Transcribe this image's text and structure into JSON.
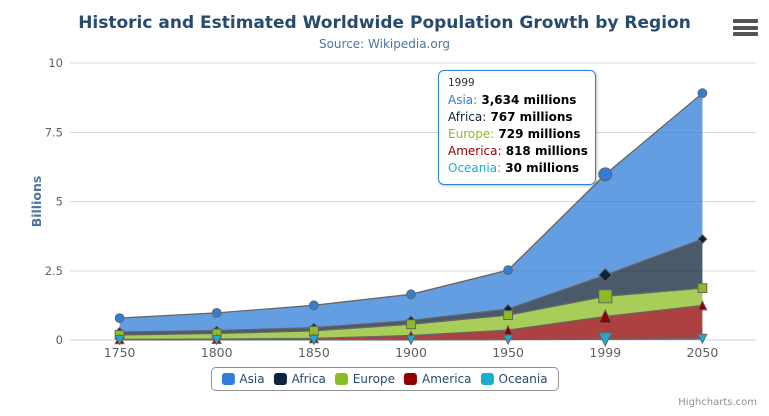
{
  "header": {
    "title": "Historic and Estimated Worldwide Population Growth by Region",
    "subtitle": "Source: Wikipedia.org"
  },
  "icons": {
    "context_menu": "hamburger-menu-icon"
  },
  "chart_data": {
    "type": "area",
    "stacking": "normal",
    "title": "Historic and Estimated Worldwide Population Growth by Region",
    "subtitle": "Source: Wikipedia.org",
    "categories": [
      "1750",
      "1800",
      "1850",
      "1900",
      "1950",
      "1999",
      "2050"
    ],
    "xlabel": "",
    "ylabel": "Billions",
    "ylim": [
      0,
      10
    ],
    "yticks": [
      "0",
      "2.5",
      "5",
      "7.5",
      "10"
    ],
    "unit": "millions",
    "grid": true,
    "legend_position": "bottom",
    "hover_category": "1999",
    "line_color": "#666666",
    "gridline_color": "#d8d8d8",
    "axis_line_color": "#c0d0e0",
    "axis_label_color": "#606060",
    "fill_opacity": 0.75,
    "series": [
      {
        "name": "Asia",
        "color": "#2f7ed8",
        "marker": "circle",
        "values": [
          502,
          635,
          809,
          947,
          1402,
          3634,
          5268
        ]
      },
      {
        "name": "Africa",
        "color": "#0d233a",
        "marker": "diamond",
        "values": [
          106,
          107,
          111,
          133,
          221,
          767,
          1766
        ]
      },
      {
        "name": "Europe",
        "color": "#8bbc21",
        "marker": "square",
        "values": [
          163,
          203,
          276,
          408,
          547,
          729,
          628
        ]
      },
      {
        "name": "America",
        "color": "#910000",
        "marker": "triangle",
        "values": [
          18,
          31,
          54,
          156,
          339,
          818,
          1201
        ]
      },
      {
        "name": "Oceania",
        "color": "#1aadce",
        "marker": "triangle-down",
        "values": [
          2,
          2,
          2,
          6,
          13,
          30,
          46
        ]
      }
    ]
  },
  "tooltip": {
    "header": "1999",
    "border_color": "#2f7ed8",
    "rows": [
      {
        "name": "Asia",
        "value": "3,634 millions",
        "color": "#2f7ed8"
      },
      {
        "name": "Africa",
        "value": "767 millions",
        "color": "#0d233a"
      },
      {
        "name": "Europe",
        "value": "729 millions",
        "color": "#8bbc21"
      },
      {
        "name": "America",
        "value": "818 millions",
        "color": "#910000"
      },
      {
        "name": "Oceania",
        "value": "30 millions",
        "color": "#1aadce"
      }
    ]
  },
  "legend": {
    "items": [
      "Asia",
      "Africa",
      "Europe",
      "America",
      "Oceania"
    ]
  },
  "credits": {
    "label": "Highcharts.com"
  }
}
